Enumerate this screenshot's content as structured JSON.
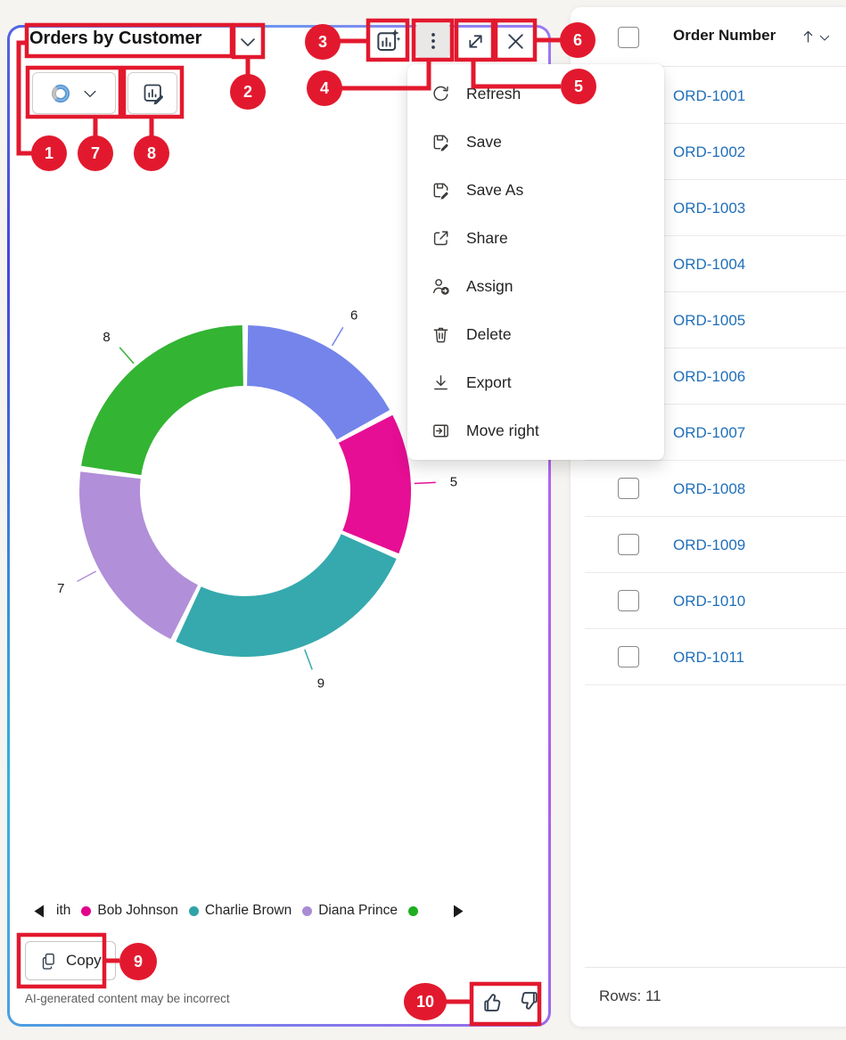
{
  "panel": {
    "title": "Orders by Customer",
    "title_menu_icon": "chevron-down-icon",
    "toolbar_icons": [
      "ai-chart-suggest-icon",
      "more-options-icon",
      "expand-icon",
      "close-icon"
    ],
    "chart_type_selector": {
      "icon": "donut-chart-icon",
      "chevron_icon": "chevron-down-icon"
    },
    "edit_chart_icon": "edit-chart-icon"
  },
  "menu": {
    "items": [
      {
        "icon": "refresh-icon",
        "label": "Refresh"
      },
      {
        "icon": "save-icon",
        "label": "Save"
      },
      {
        "icon": "save-as-icon",
        "label": "Save As"
      },
      {
        "icon": "share-icon",
        "label": "Share"
      },
      {
        "icon": "assign-icon",
        "label": "Assign"
      },
      {
        "icon": "delete-icon",
        "label": "Delete"
      },
      {
        "icon": "export-icon",
        "label": "Export"
      },
      {
        "icon": "move-right-icon",
        "label": "Move right"
      }
    ]
  },
  "chart_data": {
    "type": "pie",
    "subtype": "donut",
    "title": "Orders by Customer",
    "legend_position": "bottom",
    "legend_paginated": true,
    "data_labels_shown": true,
    "segments": [
      {
        "label": "",
        "value": 6,
        "color": "#7484ea"
      },
      {
        "label": "Bob Johnson",
        "value": 5,
        "color": "#e60e94"
      },
      {
        "label": "Charlie Brown",
        "value": 9,
        "color": "#35a9ad"
      },
      {
        "label": "Diana Prince",
        "value": 7,
        "color": "#b18fd9"
      },
      {
        "label": "",
        "value": 8,
        "color": "#33b433"
      }
    ]
  },
  "legend": {
    "prev_icon": "legend-prev-arrow",
    "next_icon": "legend-next-arrow",
    "items": [
      {
        "label": "ith",
        "dot": false,
        "color": ""
      },
      {
        "label": "Bob Johnson",
        "dot": true,
        "color": "#e3008c"
      },
      {
        "label": "Charlie Brown",
        "dot": true,
        "color": "#2fa3a8"
      },
      {
        "label": "Diana Prince",
        "dot": true,
        "color": "#a98bd4"
      },
      {
        "label": "",
        "dot": true,
        "color": "#1fae1f"
      }
    ]
  },
  "footer": {
    "copy_label": "Copy",
    "copy_icon": "copy-icon",
    "disclaimer": "AI-generated content may be incorrect",
    "feedback_icons": [
      "thumbs-up-icon",
      "thumbs-down-icon"
    ]
  },
  "table": {
    "header": {
      "label": "Order Number",
      "sort": "ascending",
      "sort_icon": "sort-ascending-icon",
      "menu_icon": "chevron-down-icon",
      "checkbox_checked": false
    },
    "rows": [
      "ORD-1001",
      "ORD-1002",
      "ORD-1003",
      "ORD-1004",
      "ORD-1005",
      "ORD-1006",
      "ORD-1007",
      "ORD-1008",
      "ORD-1009",
      "ORD-1010",
      "ORD-1011"
    ],
    "footer": "Rows: 11"
  },
  "annotations": {
    "color": "#e2192e",
    "badges": [
      "1",
      "2",
      "3",
      "4",
      "5",
      "6",
      "7",
      "8",
      "9",
      "10"
    ]
  }
}
